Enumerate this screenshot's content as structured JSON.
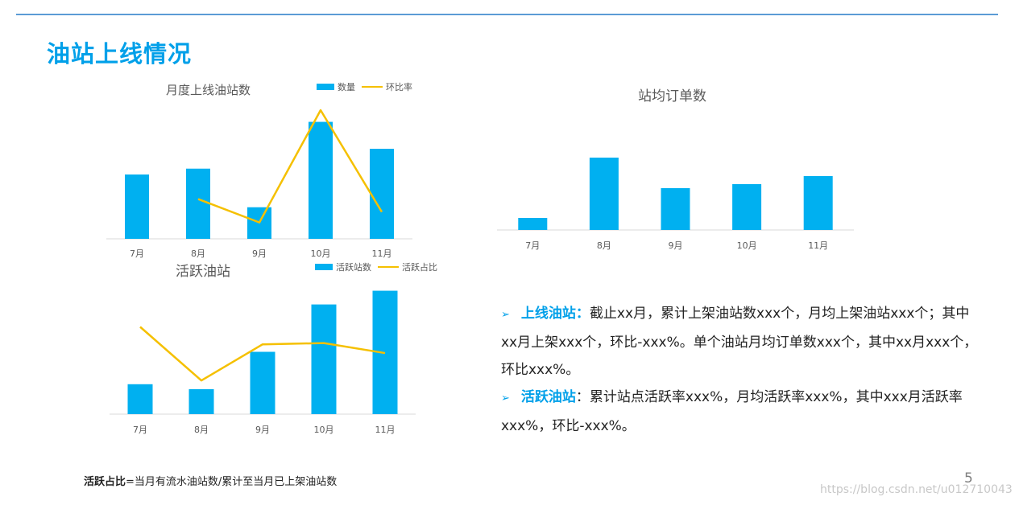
{
  "slide": {
    "title": "油站上线情况",
    "page_number": "5",
    "watermark": "https://blog.csdn.net/u012710043",
    "footnote": {
      "term": "活跃占比",
      "definition": "=当月有流水油站数/累计至当月已上架油站数"
    },
    "description": {
      "items": [
        {
          "arrow": "➢",
          "label": "上线油站：",
          "text": "截止xx月，累计上架油站数xxx个，月均上架油站xxx个；其中xx月上架xxx个，环比-xxx%。单个油站月均订单数xxx个，其中xx月xxx个，环比xxx%。"
        },
        {
          "arrow": "➢",
          "label": "活跃油站",
          "text": "：累计站点活跃率xxx%，月均活跃率xxx%，其中xxx月活跃率xxx%，环比-xxx%。"
        }
      ]
    },
    "colors": {
      "accent": "#00a0e9",
      "bar": "#00b0f0",
      "line": "#f5c000",
      "rule": "#5b9bd5"
    }
  },
  "chart_data": [
    {
      "type": "bar",
      "title": "月度上线油站数",
      "categories": [
        "7月",
        "8月",
        "9月",
        "10月",
        "11月"
      ],
      "series": [
        {
          "name": "数量",
          "type": "bar",
          "values": [
            55,
            60,
            27,
            100,
            77
          ]
        },
        {
          "name": "环比率",
          "type": "line",
          "values": [
            null,
            34,
            14,
            110,
            23
          ]
        }
      ],
      "ylim": [
        0,
        110
      ],
      "grid": false,
      "legend": "top-right"
    },
    {
      "type": "bar",
      "title": "站均订单数",
      "categories": [
        "7月",
        "8月",
        "9月",
        "10月",
        "11月"
      ],
      "series": [
        {
          "type": "bar",
          "values": [
            15,
            90,
            52,
            57,
            67
          ]
        }
      ],
      "ylim": [
        0,
        100
      ],
      "grid": false
    },
    {
      "type": "bar",
      "title": "活跃油站",
      "categories": [
        "7月",
        "8月",
        "9月",
        "10月",
        "11月"
      ],
      "series": [
        {
          "name": "活跃站数",
          "type": "bar",
          "values": [
            24,
            20,
            50,
            88,
            99
          ]
        },
        {
          "name": "活跃占比",
          "type": "line",
          "values": [
            70,
            27,
            56,
            57,
            49
          ]
        }
      ],
      "ylim": [
        0,
        100
      ],
      "grid": false,
      "legend": "top-right"
    }
  ]
}
